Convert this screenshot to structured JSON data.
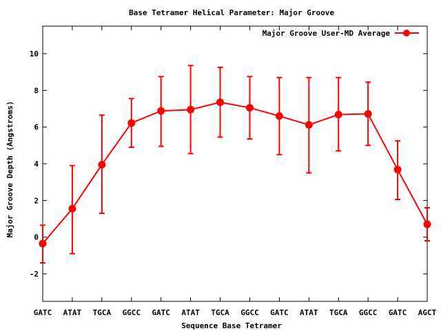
{
  "chart_data": {
    "type": "line",
    "title": "Base Tetramer Helical Parameter: Major Groove",
    "xlabel": "Sequence Base Tetramer",
    "ylabel": "Major Groove Depth (Angstroms)",
    "ylim": [
      -3.5,
      11.5
    ],
    "yticks": [
      -2,
      0,
      2,
      4,
      6,
      8,
      10
    ],
    "grid": false,
    "legend_position": "top-right",
    "categories": [
      "GATC",
      "ATAT",
      "TGCA",
      "GGCC",
      "GATC",
      "ATAT",
      "TGCA",
      "GGCC",
      "GATC",
      "ATAT",
      "TGCA",
      "GGCC",
      "GATC",
      "AGCT"
    ],
    "series": [
      {
        "name": "Major Groove User-MD Average",
        "color": "#ff0000",
        "values": [
          -0.35,
          1.55,
          3.95,
          6.22,
          6.88,
          6.95,
          7.35,
          7.05,
          6.6,
          6.12,
          6.68,
          6.72,
          3.68,
          0.7
        ],
        "err_low": [
          -1.4,
          -0.9,
          1.3,
          4.9,
          4.95,
          4.55,
          5.45,
          5.35,
          4.5,
          3.5,
          4.7,
          5.0,
          2.05,
          -0.2
        ],
        "err_high": [
          0.65,
          3.9,
          6.65,
          7.55,
          8.75,
          9.35,
          9.25,
          8.75,
          8.7,
          8.7,
          8.7,
          8.45,
          5.25,
          1.6
        ]
      }
    ]
  }
}
